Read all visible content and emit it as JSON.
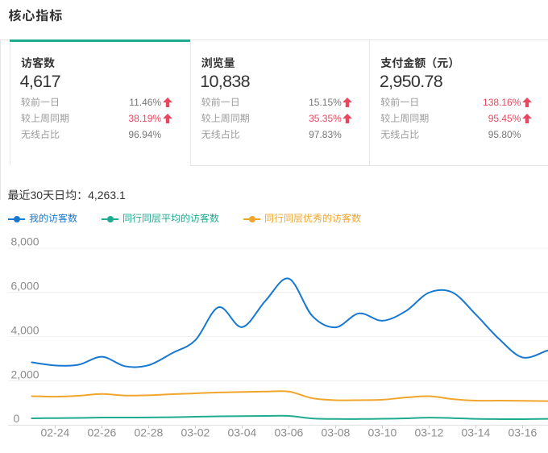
{
  "header": {
    "title": "核心指标"
  },
  "cards": [
    {
      "title": "访客数",
      "value": "4,617",
      "active": true,
      "rows": [
        {
          "label": "较前一日",
          "value": "11.46%",
          "trend": "up",
          "emphasis": false
        },
        {
          "label": "较上周同期",
          "value": "38.19%",
          "trend": "up",
          "emphasis": true
        },
        {
          "label": "无线占比",
          "value": "96.94%",
          "trend": null,
          "emphasis": false
        }
      ]
    },
    {
      "title": "浏览量",
      "value": "10,838",
      "active": false,
      "rows": [
        {
          "label": "较前一日",
          "value": "15.15%",
          "trend": "up",
          "emphasis": false
        },
        {
          "label": "较上周同期",
          "value": "35.35%",
          "trend": "up",
          "emphasis": true
        },
        {
          "label": "无线占比",
          "value": "97.83%",
          "trend": null,
          "emphasis": false
        }
      ]
    },
    {
      "title": "支付金额（元）",
      "value": "2,950.78",
      "active": false,
      "rows": [
        {
          "label": "较前一日",
          "value": "138.16%",
          "trend": "up",
          "emphasis": true
        },
        {
          "label": "较上周同期",
          "value": "95.45%",
          "trend": "up",
          "emphasis": true
        },
        {
          "label": "无线占比",
          "value": "95.80%",
          "trend": null,
          "emphasis": false
        }
      ]
    }
  ],
  "summary": {
    "label": "最近30天日均：",
    "value": "4,263.1"
  },
  "legend": [
    {
      "label": "我的访客数",
      "color": "#1778d0"
    },
    {
      "label": "同行同层平均的访客数",
      "color": "#1fab8f"
    },
    {
      "label": "同行同层优秀的访客数",
      "color": "#f0a62c"
    }
  ],
  "chart_data": {
    "type": "line",
    "smooth": true,
    "grid": true,
    "legend_position": "top",
    "ylim": [
      0,
      8000
    ],
    "y_tick_labels": [
      "0",
      "2,000",
      "4,000",
      "6,000",
      "8,000"
    ],
    "y_ticks": [
      0,
      2000,
      4000,
      6000,
      8000
    ],
    "x_tick_labels": [
      "02-24",
      "02-26",
      "02-28",
      "03-02",
      "03-04",
      "03-06",
      "03-08",
      "03-10",
      "03-12",
      "03-14",
      "03-16"
    ],
    "dates": [
      "02-23",
      "02-24",
      "02-25",
      "02-26",
      "02-27",
      "02-28",
      "03-01",
      "03-02",
      "03-03",
      "03-04",
      "03-05",
      "03-06",
      "03-07",
      "03-08",
      "03-09",
      "03-10",
      "03-11",
      "03-12",
      "03-13",
      "03-14",
      "03-15",
      "03-16",
      "03-17"
    ],
    "series": [
      {
        "name": "我的访客数",
        "color": "#1778d0",
        "values": [
          2840,
          2700,
          2730,
          3090,
          2660,
          2710,
          3250,
          3840,
          5330,
          4430,
          5620,
          6620,
          4940,
          4420,
          5050,
          4720,
          5150,
          5990,
          6000,
          5000,
          3890,
          3060,
          3350
        ]
      },
      {
        "name": "同行同层平均的访客数",
        "color": "#1fab8f",
        "values": [
          310,
          320,
          330,
          345,
          345,
          350,
          360,
          380,
          400,
          410,
          420,
          420,
          305,
          280,
          280,
          290,
          310,
          340,
          320,
          285,
          275,
          275,
          285
        ]
      },
      {
        "name": "同行同层优秀的访客数",
        "color": "#f0a62c",
        "values": [
          1310,
          1290,
          1330,
          1410,
          1340,
          1350,
          1400,
          1440,
          1480,
          1500,
          1520,
          1520,
          1220,
          1130,
          1130,
          1150,
          1250,
          1310,
          1180,
          1110,
          1110,
          1100,
          1090
        ]
      }
    ]
  },
  "colors": {
    "accent_teal": "#1fab8f",
    "rise_red": "#e8485f",
    "text_dark": "#333333",
    "text_label_gray": "#9c9c9c",
    "text_value_gray": "#757575",
    "axis_gray": "#8c8c8c"
  }
}
